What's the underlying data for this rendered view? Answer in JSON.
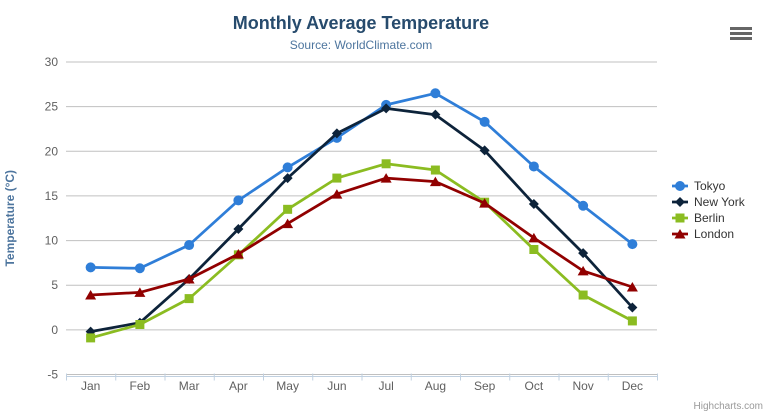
{
  "header": {
    "title": "Monthly Average Temperature",
    "subtitle": "Source: WorldClimate.com"
  },
  "toolbar": {
    "context_menu_icon": "hamburger-icon"
  },
  "credits": {
    "label": "Highcharts.com"
  },
  "chart_data": {
    "type": "line",
    "title": "Monthly Average Temperature",
    "subtitle": "Source: WorldClimate.com",
    "categories": [
      "Jan",
      "Feb",
      "Mar",
      "Apr",
      "May",
      "Jun",
      "Jul",
      "Aug",
      "Sep",
      "Oct",
      "Nov",
      "Dec"
    ],
    "xlabel": "",
    "ylabel": "Temperature (°C)",
    "ylim": [
      -5,
      30
    ],
    "yticks": [
      -5,
      0,
      5,
      10,
      15,
      20,
      25,
      30
    ],
    "grid": true,
    "legend_position": "right-middle",
    "legend_entries": [
      "Tokyo",
      "New York",
      "Berlin",
      "London"
    ],
    "series": [
      {
        "name": "Tokyo",
        "color": "#2f7ed8",
        "marker": "circle",
        "values": [
          7.0,
          6.9,
          9.5,
          14.5,
          18.2,
          21.5,
          25.2,
          26.5,
          23.3,
          18.3,
          13.9,
          9.6
        ]
      },
      {
        "name": "New York",
        "color": "#0d233a",
        "marker": "diamond",
        "values": [
          -0.2,
          0.8,
          5.7,
          11.3,
          17.0,
          22.0,
          24.8,
          24.1,
          20.1,
          14.1,
          8.6,
          2.5
        ]
      },
      {
        "name": "Berlin",
        "color": "#8bbc21",
        "marker": "square",
        "values": [
          -0.9,
          0.6,
          3.5,
          8.4,
          13.5,
          17.0,
          18.6,
          17.9,
          14.3,
          9.0,
          3.9,
          1.0
        ]
      },
      {
        "name": "London",
        "color": "#910000",
        "marker": "triangle",
        "values": [
          3.9,
          4.2,
          5.7,
          8.5,
          11.9,
          15.2,
          17.0,
          16.6,
          14.2,
          10.3,
          6.6,
          4.8
        ]
      }
    ],
    "colors": {
      "grid_line": "#c0c0c0",
      "axis_line": "#c0d0e0",
      "tick_mark": "#c0d0e0",
      "axis_label_text": "#606060",
      "yaxis_title_text": "#4d759e",
      "title_text": "#274b6d",
      "subtitle_text": "#4d759e",
      "legend_text": "#333333",
      "credits_text": "#999999",
      "context_button_bars": "#666666"
    }
  }
}
